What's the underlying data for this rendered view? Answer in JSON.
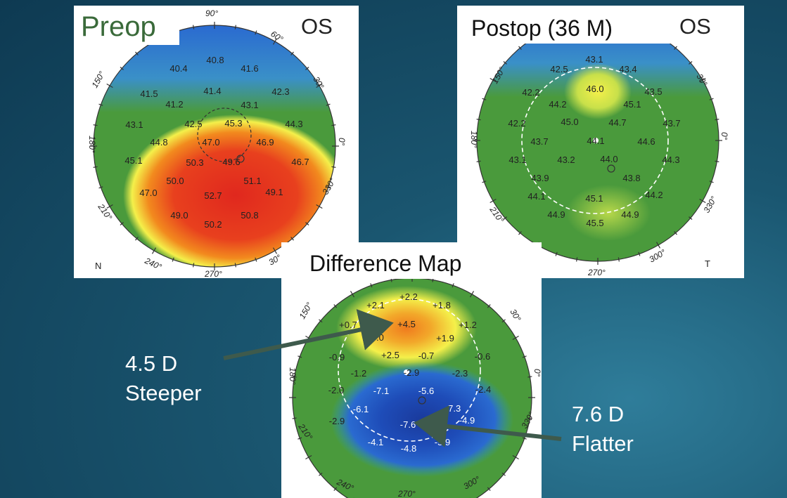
{
  "preop": {
    "title": "Preop",
    "eye": "OS",
    "nasal": "N",
    "degree_labels": [
      "90°",
      "60°",
      "30°",
      "0°",
      "330°",
      "30°",
      "270°",
      "240°",
      "210°",
      "180°",
      "150°"
    ],
    "values": [
      "40.8",
      "40.4",
      "41.6",
      "41.5",
      "41.4",
      "42.3",
      "41.2",
      "43.1",
      "43.1",
      "42.5",
      "45.3",
      "44.3",
      "44.8",
      "47.0",
      "46.9",
      "45.1",
      "50.3",
      "49.6",
      "46.7",
      "50.0",
      "51.1",
      "47.0",
      "52.7",
      "49.1",
      "49.0",
      "50.8",
      "50.2"
    ]
  },
  "postop": {
    "title": "Postop (36 M)",
    "eye": "OS",
    "temporal": "T",
    "degree_labels": [
      "150°",
      "30°",
      "0°",
      "330°",
      "300°",
      "270°",
      "210°",
      "180°"
    ],
    "values": [
      "43.1",
      "42.5",
      "43.4",
      "46.0",
      "42.2",
      "43.5",
      "44.2",
      "45.1",
      "42.2",
      "45.0",
      "44.7",
      "43.7",
      "43.7",
      "44.1",
      "44.6",
      "43.1",
      "43.2",
      "44.0",
      "44.3",
      "43.9",
      "43.8",
      "44.1",
      "44.2",
      "45.1",
      "44.9",
      "44.9",
      "45.5"
    ]
  },
  "difference": {
    "title": "Difference Map",
    "degree_labels": [
      "150°",
      "30°",
      "0°",
      "330°",
      "300°",
      "270°",
      "240°",
      "210°",
      "180°"
    ],
    "values": [
      "+2.2",
      "+2.1",
      "+1.8",
      "+0.7",
      "+4.5",
      "+1.2",
      "+3.0",
      "+1.9",
      "+2.5",
      "-0.9",
      "-0.7",
      "-0.6",
      "-1.2",
      "-2.9",
      "-2.3",
      "-2.0",
      "-7.1",
      "-5.6",
      "-2.4",
      "-6.1",
      "-7.3",
      "-2.9",
      "-7.6",
      "-4.9",
      "-4.1",
      "-4.8",
      "-5.9"
    ]
  },
  "callouts": {
    "steeper": {
      "line1": "4.5 D",
      "line2": "Steeper"
    },
    "flatter": {
      "line1": "7.6 D",
      "line2": "Flatter"
    }
  },
  "colors": {
    "steep_red": "#e0281e",
    "orange": "#f28a1e",
    "yellow": "#f4f04a",
    "green": "#4a9a3c",
    "blue": "#2a6ad0",
    "deep_blue": "#1a3a9c",
    "arrow": "#3e5a4c",
    "title_green": "#3a6a3a"
  }
}
